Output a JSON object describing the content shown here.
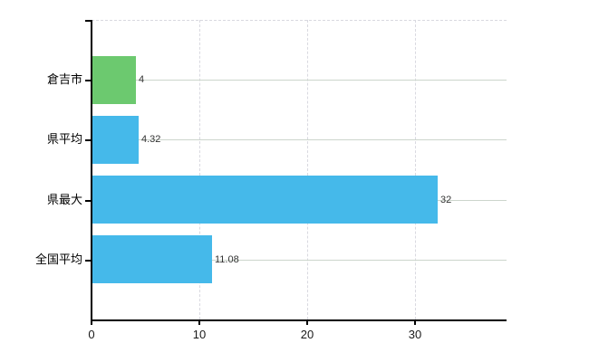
{
  "chart_data": {
    "type": "bar",
    "orientation": "horizontal",
    "title": "",
    "xlabel": "",
    "ylabel": "",
    "categories": [
      "倉吉市",
      "県平均",
      "県最大",
      "全国平均"
    ],
    "values": [
      4,
      4.32,
      32,
      11.08
    ],
    "value_labels": [
      "4",
      "4.32",
      "32",
      "11.08"
    ],
    "series": [
      {
        "name": "value",
        "values": [
          4,
          4.32,
          32,
          11.08
        ]
      }
    ],
    "bar_colors": [
      "#6cc96f",
      "#45b9ea",
      "#45b9ea",
      "#45b9ea"
    ],
    "x_ticks": [
      0,
      10,
      20,
      30
    ],
    "x_tick_labels": [
      "0",
      "10",
      "20",
      "30"
    ],
    "xlim": [
      0,
      38.5
    ],
    "legend": "none",
    "grid": {
      "vertical_style": "dashed",
      "horizontal_style": "solid",
      "top_border_style": "dashed"
    },
    "colors": {
      "green_bar": "#6cc96f",
      "blue_bar": "#45b9ea",
      "h_gridline": "#ccd5cc",
      "v_gridline": "#d9d9e0",
      "axis": "#000000",
      "value_label_text": "#333333",
      "tick_label_text": "#1a1a1a",
      "category_label_text": "#000000",
      "background": "#ffffff"
    }
  }
}
